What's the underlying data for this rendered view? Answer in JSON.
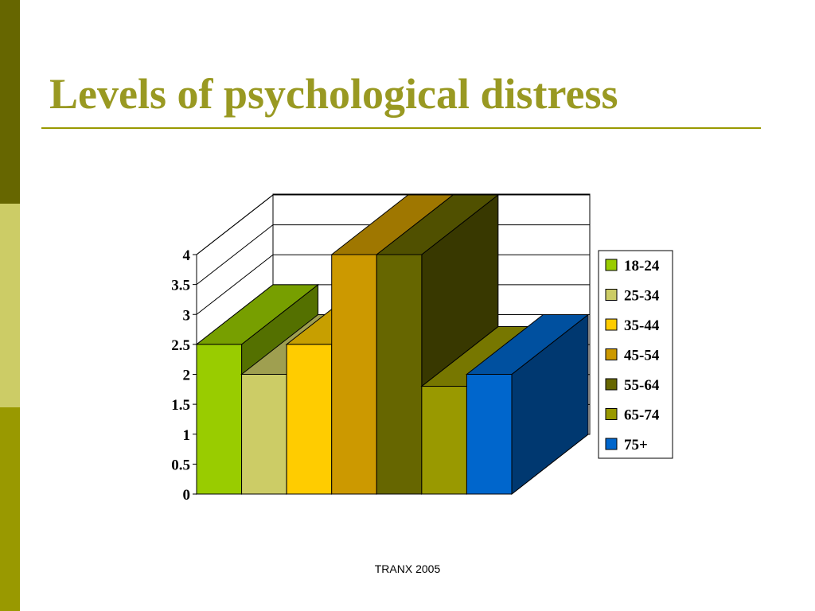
{
  "slide_title": "Levels of psychological distress",
  "footer": "TRANX 2005",
  "chart_data": {
    "type": "bar3d",
    "categories": [
      null
    ],
    "series": [
      {
        "name": "18-24",
        "color": "#99cc00",
        "values": [
          2.5
        ]
      },
      {
        "name": "25-34",
        "color": "#cccc66",
        "values": [
          2
        ]
      },
      {
        "name": "35-44",
        "color": "#ffcc00",
        "values": [
          2.5
        ]
      },
      {
        "name": "45-54",
        "color": "#cc9900",
        "values": [
          4
        ]
      },
      {
        "name": "55-64",
        "color": "#666600",
        "values": [
          4
        ]
      },
      {
        "name": "65-74",
        "color": "#999900",
        "values": [
          1.8
        ]
      },
      {
        "name": "75+",
        "color": "#0066cc",
        "values": [
          2
        ]
      }
    ],
    "ylim": [
      0,
      4
    ],
    "yticks": [
      0,
      0.5,
      1,
      1.5,
      2,
      2.5,
      3,
      3.5,
      4
    ],
    "grid": true,
    "legend": "right"
  }
}
